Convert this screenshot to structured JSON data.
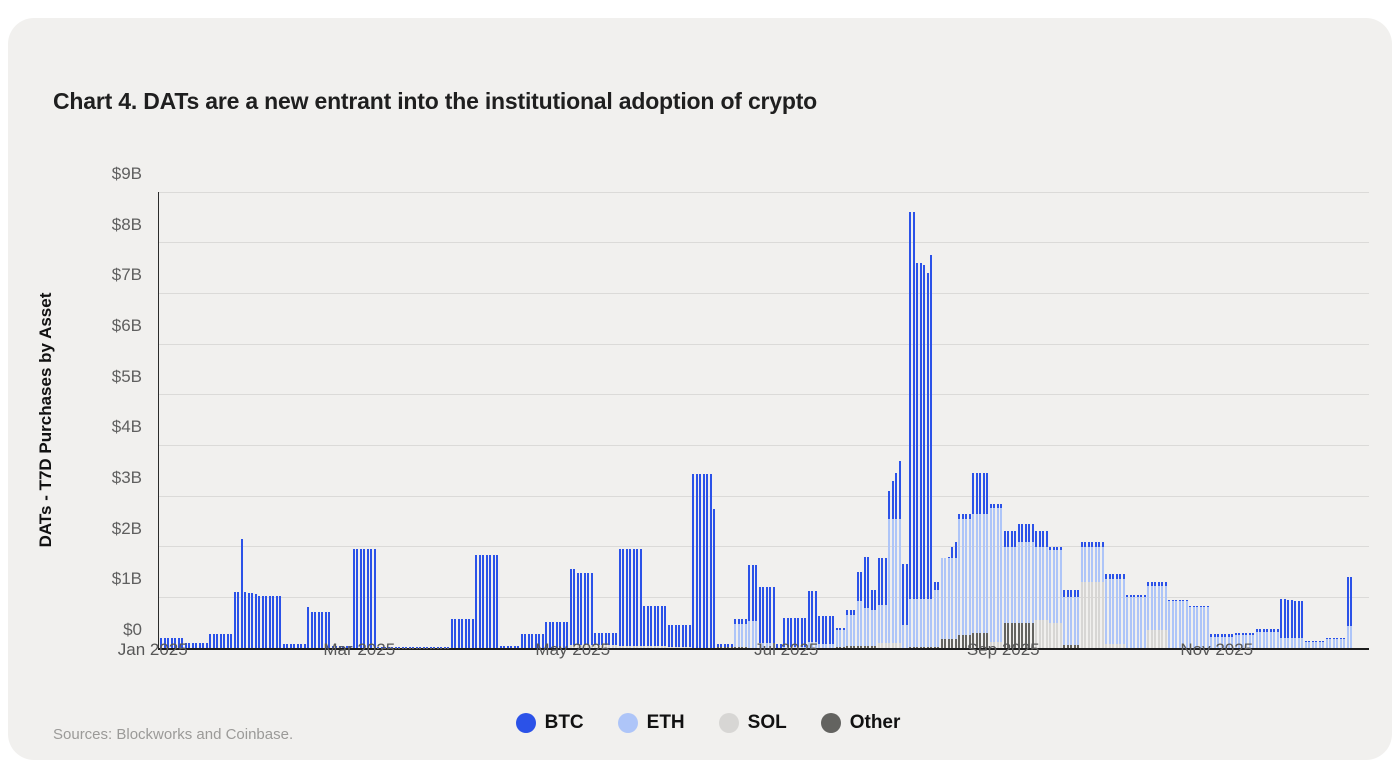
{
  "page": {
    "title": "Chart 4. DATs are a new entrant into the institutional adoption of crypto",
    "source_note": "Sources: Blockworks and Coinbase."
  },
  "chart_data": {
    "type": "bar",
    "stacked": true,
    "title": "Chart 4. DATs are a new entrant into the institutional adoption of crypto",
    "xlabel": "",
    "ylabel": "DATs - T7D Purchases by Asset",
    "unit": "USD billions",
    "ylim": [
      0,
      9
    ],
    "grid": "horizontal",
    "legend_position": "bottom-center",
    "y_ticks": [
      {
        "value": 0,
        "label": "$0"
      },
      {
        "value": 1,
        "label": "$1B"
      },
      {
        "value": 2,
        "label": "$2B"
      },
      {
        "value": 3,
        "label": "$3B"
      },
      {
        "value": 4,
        "label": "$4B"
      },
      {
        "value": 5,
        "label": "$5B"
      },
      {
        "value": 6,
        "label": "$6B"
      },
      {
        "value": 7,
        "label": "$7B"
      },
      {
        "value": 8,
        "label": "$8B"
      },
      {
        "value": 9,
        "label": "$9B"
      }
    ],
    "x_ticks": [
      {
        "label": "Jan 2025",
        "day": 0
      },
      {
        "label": "Mar 2025",
        "day": 59
      },
      {
        "label": "May 2025",
        "day": 120
      },
      {
        "label": "Jul 2025",
        "day": 181
      },
      {
        "label": "Sep 2025",
        "day": 243
      },
      {
        "label": "Nov 2025",
        "day": 304
      }
    ],
    "legend": [
      {
        "key": "btc",
        "name": "BTC",
        "color": "#2b52e8"
      },
      {
        "key": "eth",
        "name": "ETH",
        "color": "#aec5f8"
      },
      {
        "key": "sol",
        "name": "SOL",
        "color": "#d7d6d4"
      },
      {
        "key": "other",
        "name": "Other",
        "color": "#636360"
      }
    ],
    "series_order_bottom_to_top": [
      "other",
      "sol",
      "eth",
      "btc"
    ],
    "blocks_note": "Daily stacked bars in $B, grouped into trailing-7-day plateau blocks; d = number of days; totals = per-day stack totals where the block is not flat (BTC absorbs the remainder).",
    "blocks": [
      {
        "d": 7,
        "btc": 0.2
      },
      {
        "d": 7,
        "btc": 0.09
      },
      {
        "d": 7,
        "btc": 0.27
      },
      {
        "d": 7,
        "btc": 1.1,
        "totals": [
          1.1,
          1.1,
          2.15,
          1.1,
          1.08,
          1.08,
          1.06
        ]
      },
      {
        "d": 7,
        "btc": 1.03
      },
      {
        "d": 7,
        "btc": 0.08
      },
      {
        "d": 7,
        "btc": 0.72,
        "totals": [
          0.8,
          0.72,
          0.72,
          0.72,
          0.72,
          0.72,
          0.72
        ]
      },
      {
        "d": 6,
        "btc": 0.03
      },
      {
        "d": 7,
        "btc": 1.95
      },
      {
        "d": 7,
        "btc": 0.02,
        "other": 0.01
      },
      {
        "d": 7,
        "btc": 0.02,
        "other": 0.01
      },
      {
        "d": 7,
        "btc": 0.02,
        "other": 0.01
      },
      {
        "d": 7,
        "btc": 0.57
      },
      {
        "d": 7,
        "btc": 1.84
      },
      {
        "d": 6,
        "btc": 0.04
      },
      {
        "d": 7,
        "btc": 0.28
      },
      {
        "d": 7,
        "btc": 0.52
      },
      {
        "d": 7,
        "btc": 1.45,
        "sol": 0.05,
        "totals": [
          1.55,
          1.55,
          1.48,
          1.48,
          1.48,
          1.48,
          1.48
        ]
      },
      {
        "d": 7,
        "btc": 0.25,
        "sol": 0.05
      },
      {
        "d": 7,
        "btc": 1.92,
        "sol": 0.03
      },
      {
        "d": 7,
        "btc": 0.79,
        "sol": 0.03
      },
      {
        "d": 7,
        "btc": 0.43,
        "sol": 0.02
      },
      {
        "d": 7,
        "btc": 3.43,
        "totals": [
          3.43,
          3.43,
          3.43,
          3.43,
          3.43,
          3.43,
          2.75
        ]
      },
      {
        "d": 5,
        "btc": 0.05,
        "other": 0.02
      },
      {
        "d": 4,
        "btc": 0.1,
        "eth": 0.45,
        "other": 0.02
      },
      {
        "d": 3,
        "btc": 1.1,
        "eth": 0.53
      },
      {
        "d": 5,
        "btc": 1.1,
        "eth": 0.1
      },
      {
        "d": 2,
        "btc": 0.08
      },
      {
        "d": 7,
        "btc": 0.58,
        "eth": 0.02
      },
      {
        "d": 3,
        "btc": 1.0,
        "eth": 0.12
      },
      {
        "d": 5,
        "btc": 0.55,
        "eth": 0.08
      },
      {
        "d": 3,
        "btc": 0.05,
        "eth": 0.33,
        "other": 0.02
      },
      {
        "d": 3,
        "btc": 0.1,
        "eth": 0.62,
        "other": 0.03
      },
      {
        "d": 2,
        "btc": 0.57,
        "eth": 0.9,
        "other": 0.03
      },
      {
        "d": 2,
        "btc": 1.02,
        "eth": 0.75,
        "other": 0.03
      },
      {
        "d": 2,
        "btc": 0.4,
        "eth": 0.72,
        "other": 0.03
      },
      {
        "d": 3,
        "btc": 0.93,
        "eth": 0.75,
        "sol": 0.1
      },
      {
        "d": 4,
        "btc": 0.75,
        "eth": 2.45,
        "sol": 0.1,
        "totals": [
          3.1,
          3.3,
          3.45,
          3.7
        ]
      },
      {
        "d": 2,
        "btc": 1.2,
        "eth": 0.45
      },
      {
        "d": 7,
        "btc": 6.8,
        "eth": 0.95,
        "other": 0.02,
        "totals": [
          8.6,
          8.6,
          7.6,
          7.6,
          7.55,
          7.4,
          7.75
        ]
      },
      {
        "d": 2,
        "btc": 0.15,
        "eth": 1.13,
        "other": 0.02
      },
      {
        "d": 5,
        "btc": 0.12,
        "eth": 1.6,
        "other": 0.18,
        "totals": [
          1.5,
          1.65,
          1.8,
          2.0,
          2.1
        ]
      },
      {
        "d": 4,
        "btc": 0.1,
        "eth": 2.3,
        "other": 0.25
      },
      {
        "d": 5,
        "btc": 0.8,
        "eth": 2.35,
        "other": 0.3
      },
      {
        "d": 4,
        "btc": 0.08,
        "eth": 2.65,
        "sol": 0.12
      },
      {
        "d": 4,
        "btc": 0.3,
        "eth": 1.5,
        "other": 0.5
      },
      {
        "d": 5,
        "btc": 0.35,
        "eth": 1.6,
        "other": 0.5
      },
      {
        "d": 4,
        "btc": 0.3,
        "eth": 1.45,
        "sol": 0.55
      },
      {
        "d": 4,
        "btc": 0.07,
        "eth": 1.43,
        "sol": 0.5
      },
      {
        "d": 5,
        "btc": 0.15,
        "eth": 0.95,
        "other": 0.05
      },
      {
        "d": 7,
        "btc": 0.1,
        "eth": 0.7,
        "sol": 1.3
      },
      {
        "d": 6,
        "btc": 0.1,
        "eth": 1.29,
        "sol": 0.08
      },
      {
        "d": 6,
        "btc": 0.05,
        "eth": 1.0
      },
      {
        "d": 6,
        "btc": 0.07,
        "eth": 0.88,
        "sol": 0.35
      },
      {
        "d": 6,
        "btc": 0.02,
        "eth": 0.93
      },
      {
        "d": 6,
        "btc": 0.02,
        "eth": 0.8
      },
      {
        "d": 7,
        "btc": 0.05,
        "eth": 0.22
      },
      {
        "d": 6,
        "btc": 0.05,
        "eth": 0.25
      },
      {
        "d": 7,
        "btc": 0.06,
        "eth": 0.32
      },
      {
        "d": 7,
        "btc": 0.75,
        "eth": 0.2,
        "totals": [
          0.97,
          0.97,
          0.95,
          0.95,
          0.93,
          0.93,
          0.93
        ]
      },
      {
        "d": 6,
        "btc": 0.01,
        "eth": 0.12
      },
      {
        "d": 6,
        "btc": 0.01,
        "eth": 0.18
      },
      {
        "d": 2,
        "btc": 0.97,
        "eth": 0.44
      }
    ]
  }
}
